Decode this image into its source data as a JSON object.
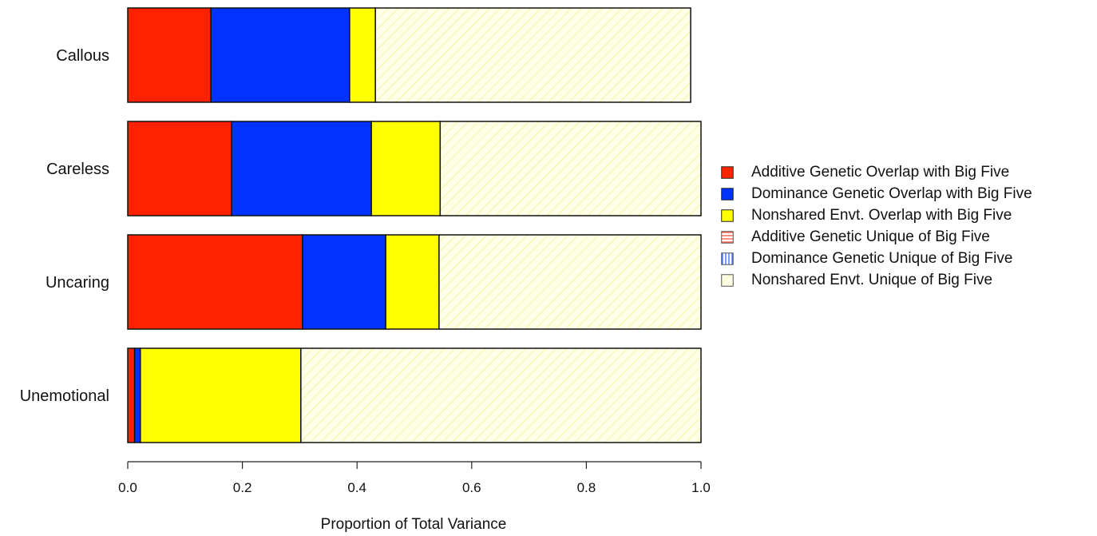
{
  "chart_data": {
    "type": "bar",
    "orientation": "horizontal",
    "stacked": true,
    "categories": [
      "Callous",
      "Careless",
      "Uncaring",
      "Unemotional"
    ],
    "series": [
      {
        "name": "Additive Genetic Overlap with Big Five",
        "color": "#ff2200",
        "pattern": "solid",
        "values": [
          0.145,
          0.181,
          0.305,
          0.012
        ]
      },
      {
        "name": "Dominance Genetic Overlap with Big Five",
        "color": "#0033ff",
        "pattern": "solid",
        "values": [
          0.242,
          0.244,
          0.145,
          0.01
        ]
      },
      {
        "name": "Nonshared Envt. Overlap with Big Five",
        "color": "#ffff00",
        "pattern": "solid",
        "values": [
          0.045,
          0.12,
          0.093,
          0.28
        ]
      },
      {
        "name": "Additive Genetic Unique of Big Five",
        "color": "#ff2200",
        "pattern": "hatch-horizontal",
        "values": [
          0,
          0,
          0,
          0
        ]
      },
      {
        "name": "Dominance Genetic Unique of Big Five",
        "color": "#0033ff",
        "pattern": "hatch-vertical",
        "values": [
          0,
          0,
          0,
          0
        ]
      },
      {
        "name": "Nonshared Envt. Unique of Big Five",
        "color": "#ffff00",
        "pattern": "hatch-diagonal",
        "values": [
          0.55,
          0.455,
          0.457,
          0.698
        ]
      }
    ],
    "xlabel": "Proportion of Total Variance",
    "ylabel": "",
    "xlim": [
      0,
      1
    ],
    "xticks": [
      "0.0",
      "0.2",
      "0.4",
      "0.6",
      "0.8",
      "1.0"
    ],
    "grid": false,
    "legend_position": "right"
  }
}
